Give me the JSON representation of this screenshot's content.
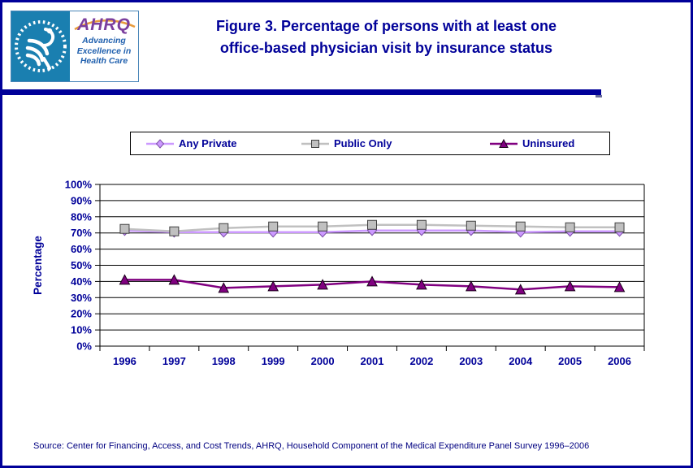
{
  "header": {
    "logo": {
      "hhs_emblem": "HHS eagle seal",
      "ahrq_acronym": "AHRQ",
      "tagline": [
        "Advancing",
        "Excellence in",
        "Health Care"
      ]
    },
    "title_line1": "Figure 3. Percentage of persons with at least one",
    "title_line2": "office-based physician visit by insurance status"
  },
  "colors": {
    "navy_text": "#000099",
    "source_text": "#000080",
    "divider": "#000099",
    "hhs_teal": "#1a7fb0",
    "ahrq_purple": "#7b3f9e",
    "ahrq_orange": "#e89b3c",
    "grid": "#000000"
  },
  "chart_data": {
    "type": "line",
    "title": "",
    "xlabel": "",
    "ylabel": "Percentage",
    "ylim": [
      0,
      100
    ],
    "ytick_step": 10,
    "ytick_suffix": "%",
    "grid": true,
    "legend_position": "top",
    "x": [
      "1996",
      "1997",
      "1998",
      "1999",
      "2000",
      "2001",
      "2002",
      "2003",
      "2004",
      "2005",
      "2006"
    ],
    "series": [
      {
        "name": "Any Private",
        "values": [
          71.5,
          70.5,
          70.5,
          70.5,
          70.5,
          71.5,
          71.5,
          71.5,
          70.5,
          71,
          71
        ],
        "line_color": "#CC99FF",
        "marker": "diamond",
        "marker_fill": "#CC99FF",
        "marker_stroke": "#7b4fa6"
      },
      {
        "name": "Public Only",
        "values": [
          72.5,
          71,
          73,
          74,
          74,
          75,
          75,
          74.5,
          74,
          73.5,
          73.5
        ],
        "line_color": "#C0C0C0",
        "marker": "square",
        "marker_fill": "#C0C0C0",
        "marker_stroke": "#404040"
      },
      {
        "name": "Uninsured",
        "values": [
          41,
          41,
          36,
          37,
          38,
          40,
          38,
          37,
          35,
          37,
          36.5
        ],
        "line_color": "#800080",
        "marker": "triangle",
        "marker_fill": "#800080",
        "marker_stroke": "#1a001a"
      }
    ]
  },
  "source": "Source: Center for Financing, Access, and Cost Trends, AHRQ, Household Component of the Medical Expenditure Panel Survey 1996–2006"
}
